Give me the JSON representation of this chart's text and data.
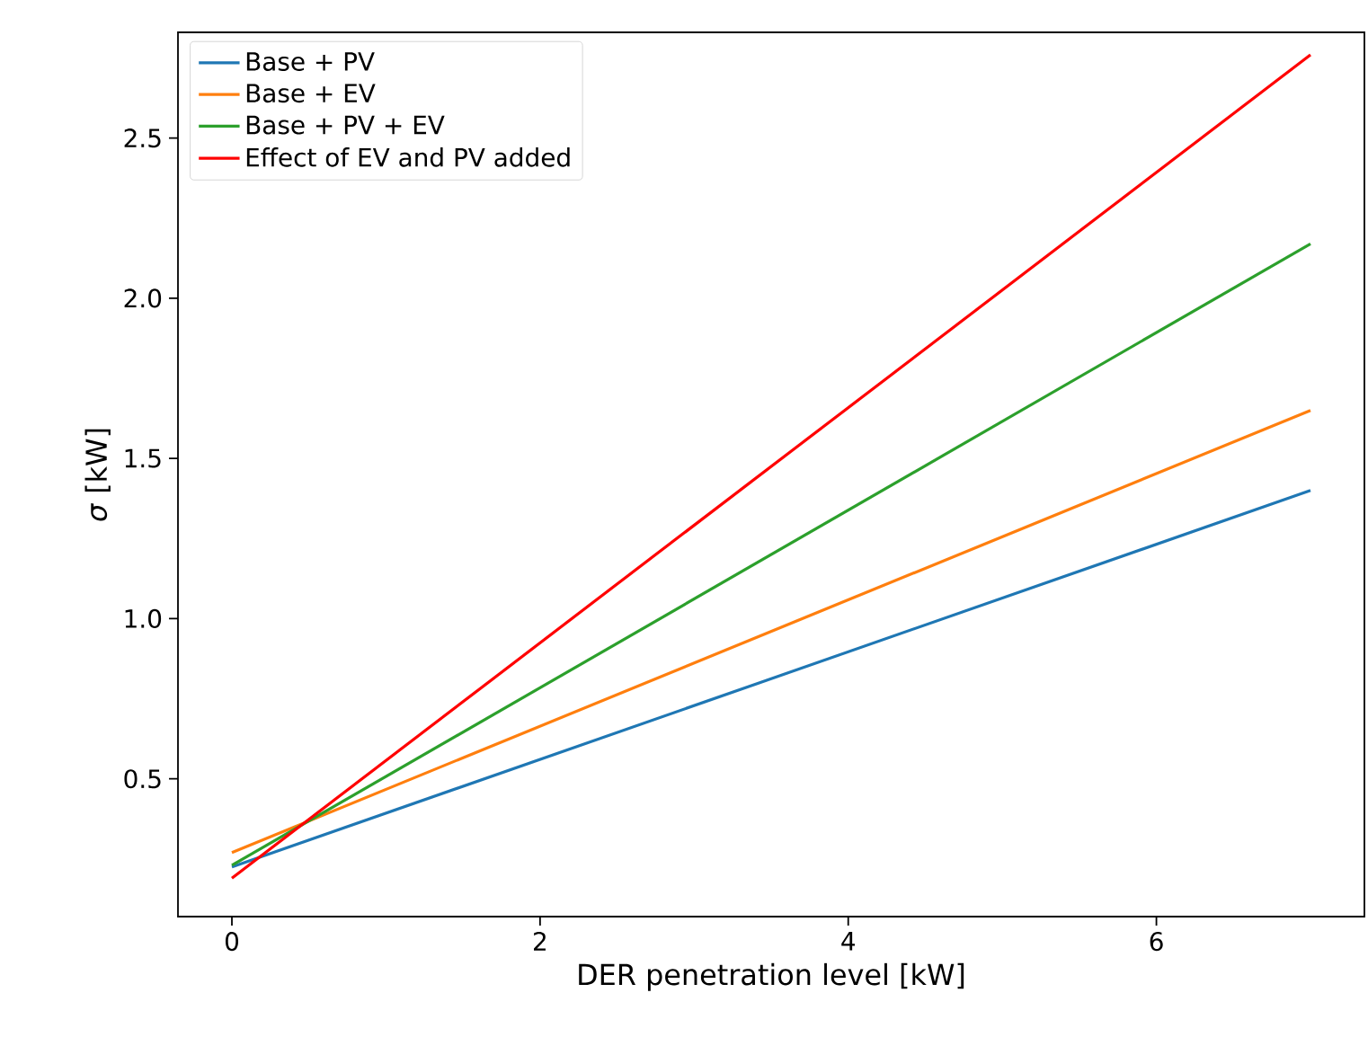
{
  "chart_data": {
    "type": "line",
    "xlabel": "DER penetration level [kW]",
    "ylabel": "*σ* [kW]",
    "x": [
      0,
      7
    ],
    "series": [
      {
        "name": "Base + PV",
        "color": "#1f77b4",
        "values": [
          0.225,
          1.4
        ]
      },
      {
        "name": "Base + EV",
        "color": "#ff7f0e",
        "values": [
          0.27,
          1.65
        ]
      },
      {
        "name": "Base + PV + EV",
        "color": "#2ca02c",
        "values": [
          0.23,
          2.17
        ]
      },
      {
        "name": "Effect of EV and PV added",
        "color": "#ff0000",
        "values": [
          0.19,
          2.76
        ]
      }
    ],
    "xlim": [
      -0.35,
      7.35
    ],
    "ylim": [
      0.07,
      2.83
    ],
    "xticks": [
      0,
      2,
      4,
      6
    ],
    "yticks": [
      0.5,
      {
        "value": 1.0,
        "label": "1.0"
      },
      1.5,
      {
        "value": 2.0,
        "label": "2.0"
      },
      2.5
    ],
    "legend": "top left",
    "grid": false,
    "marker": "none",
    "line_style": "solid"
  }
}
